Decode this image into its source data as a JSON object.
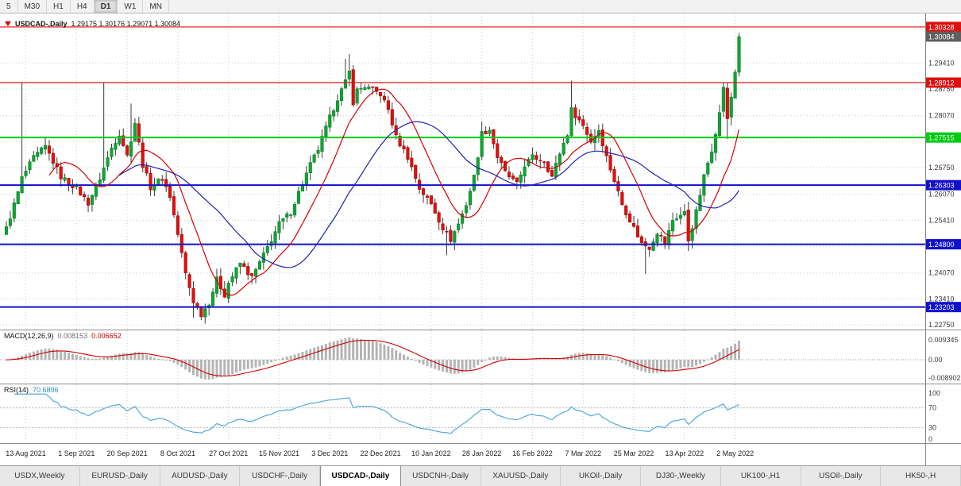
{
  "toolbar": {
    "timeframes": [
      "5",
      "M30",
      "H1",
      "H4",
      "D1",
      "W1",
      "MN"
    ],
    "active": "D1"
  },
  "chart": {
    "title": {
      "symbol": "USDCAD-,Daily",
      "ohlc": "1.29175 1.30176 1.29071 1.30084"
    },
    "y_axis_labels": [
      {
        "text": "1.29410",
        "price": 1.2941
      },
      {
        "text": "1.28750",
        "price": 1.2875
      },
      {
        "text": "1.28070",
        "price": 1.2807
      },
      {
        "text": "1.26750",
        "price": 1.2675
      },
      {
        "text": "1.26070",
        "price": 1.2607
      },
      {
        "text": "1.25410",
        "price": 1.2541
      },
      {
        "text": "1.24070",
        "price": 1.2407
      },
      {
        "text": "1.23410",
        "price": 1.2341
      },
      {
        "text": "1.22750",
        "price": 1.2275
      }
    ],
    "grid_prices": [
      1.2941,
      1.2875,
      1.2807,
      1.2741,
      1.2675,
      1.2607,
      1.2541,
      1.2475,
      1.2407,
      1.2341,
      1.2275
    ],
    "badges": [
      {
        "text": "1.30328",
        "price": 1.30328,
        "bg": "#dd1111"
      },
      {
        "text": "1.30084",
        "price": 1.30084,
        "bg": "#5f5f5f"
      },
      {
        "text": "1.28912",
        "price": 1.28912,
        "bg": "#dd1111"
      },
      {
        "text": "1.27515",
        "price": 1.27515,
        "bg": "#00cc11"
      },
      {
        "text": "1.26303",
        "price": 1.26303,
        "bg": "#1111cc"
      },
      {
        "text": "1.24800",
        "price": 1.248,
        "bg": "#1111cc"
      },
      {
        "text": "1.23203",
        "price": 1.23203,
        "bg": "#1111cc"
      }
    ],
    "h_lines": [
      {
        "price": 1.30328,
        "color": "#dd1111",
        "w": 1.2
      },
      {
        "price": 1.28912,
        "color": "#dd1111",
        "w": 1.2
      },
      {
        "price": 1.27515,
        "color": "#00cc11",
        "w": 2
      },
      {
        "price": 1.26303,
        "color": "#1111cc",
        "w": 2
      },
      {
        "price": 1.248,
        "color": "#1111cc",
        "w": 2
      },
      {
        "price": 1.23203,
        "color": "#1111cc",
        "w": 2
      }
    ],
    "x_axis_labels": [
      "13 Aug 2021",
      "1 Sep 2021",
      "20 Sep 2021",
      "8 Oct 2021",
      "27 Oct 2021",
      "15 Nov 2021",
      "3 Dec 2021",
      "22 Dec 2021",
      "10 Jan 2022",
      "28 Jan 2022",
      "16 Feb 2022",
      "7 Mar 2022",
      "25 Mar 2022",
      "13 Apr 2022",
      "2 May 2022"
    ]
  },
  "chart_data": {
    "type": "candlestick",
    "symbol": "USDCAD",
    "period": "Daily",
    "days": 189,
    "current_bar": {
      "open": 1.29175,
      "high": 1.30176,
      "low": 1.29071,
      "close": 1.30084
    },
    "anchors": [
      [
        0,
        1.252
      ],
      [
        3,
        1.2612
      ],
      [
        4,
        1.2648
      ],
      [
        7,
        1.27
      ],
      [
        10,
        1.2728
      ],
      [
        14,
        1.2652
      ],
      [
        18,
        1.2622
      ],
      [
        21,
        1.2585
      ],
      [
        24,
        1.2648
      ],
      [
        27,
        1.2725
      ],
      [
        29,
        1.2762
      ],
      [
        31,
        1.2705
      ],
      [
        33,
        1.279
      ],
      [
        35,
        1.2682
      ],
      [
        37,
        1.2625
      ],
      [
        40,
        1.2648
      ],
      [
        42,
        1.2602
      ],
      [
        44,
        1.2505
      ],
      [
        46,
        1.2405
      ],
      [
        48,
        1.2335
      ],
      [
        50,
        1.2302
      ],
      [
        52,
        1.2332
      ],
      [
        54,
        1.239
      ],
      [
        56,
        1.2352
      ],
      [
        57,
        1.2382
      ],
      [
        60,
        1.2432
      ],
      [
        63,
        1.2395
      ],
      [
        66,
        1.2452
      ],
      [
        70,
        1.2532
      ],
      [
        73,
        1.2562
      ],
      [
        75,
        1.2612
      ],
      [
        78,
        1.2682
      ],
      [
        80,
        1.2722
      ],
      [
        83,
        1.2802
      ],
      [
        85,
        1.2852
      ],
      [
        87,
        1.2892
      ],
      [
        88,
        1.2918
      ],
      [
        89,
        1.2842
      ],
      [
        90,
        1.2872
      ],
      [
        92,
        1.2882
      ],
      [
        96,
        1.2862
      ],
      [
        98,
        1.2822
      ],
      [
        100,
        1.2752
      ],
      [
        103,
        1.2702
      ],
      [
        106,
        1.2622
      ],
      [
        109,
        1.2582
      ],
      [
        112,
        1.2522
      ],
      [
        114,
        1.2492
      ],
      [
        116,
        1.2532
      ],
      [
        118,
        1.2582
      ],
      [
        120,
        1.2652
      ],
      [
        122,
        1.2762
      ],
      [
        124,
        1.2772
      ],
      [
        126,
        1.2702
      ],
      [
        128,
        1.2662
      ],
      [
        131,
        1.2632
      ],
      [
        133,
        1.2682
      ],
      [
        135,
        1.2702
      ],
      [
        138,
        1.2692
      ],
      [
        140,
        1.2652
      ],
      [
        142,
        1.2712
      ],
      [
        144,
        1.2762
      ],
      [
        145,
        1.2822
      ],
      [
        148,
        1.2782
      ],
      [
        150,
        1.2742
      ],
      [
        152,
        1.2772
      ],
      [
        154,
        1.2702
      ],
      [
        156,
        1.2642
      ],
      [
        158,
        1.2582
      ],
      [
        161,
        1.2522
      ],
      [
        163,
        1.2482
      ],
      [
        165,
        1.2472
      ],
      [
        167,
        1.2512
      ],
      [
        169,
        1.2482
      ],
      [
        171,
        1.2542
      ],
      [
        174,
        1.256
      ],
      [
        175,
        1.249
      ],
      [
        177,
        1.2562
      ],
      [
        179,
        1.2652
      ],
      [
        181,
        1.2722
      ],
      [
        183,
        1.2812
      ],
      [
        184,
        1.2882
      ],
      [
        185,
        1.2795
      ],
      [
        186,
        1.2855
      ],
      [
        187,
        1.2918
      ],
      [
        188,
        1.30084
      ]
    ],
    "spikes": [
      {
        "day": 4,
        "high": 1.2892
      },
      {
        "day": 25,
        "high": 1.289
      },
      {
        "day": 32,
        "high": 1.2838
      },
      {
        "day": 48,
        "low": 1.2293
      },
      {
        "day": 50,
        "low": 1.2287
      },
      {
        "day": 87,
        "high": 1.2952
      },
      {
        "day": 88,
        "high": 1.2964
      },
      {
        "day": 113,
        "low": 1.2452
      },
      {
        "day": 122,
        "high": 1.2792
      },
      {
        "day": 145,
        "high": 1.2896
      },
      {
        "day": 164,
        "low": 1.2405
      },
      {
        "day": 175,
        "low": 1.2463
      },
      {
        "day": 185,
        "low": 1.2748
      }
    ],
    "up_color": "#0fa534",
    "down_color": "#e01010",
    "wick_color": "#3c3c3c",
    "ma_fast": {
      "period": 12,
      "color": "#d40000"
    },
    "ma_slow": {
      "period": 30,
      "color": "#2020b0"
    }
  },
  "macd": {
    "label": "MACD(12,26,9)",
    "value_main": "0.008153",
    "value_signal": "0.006652",
    "scale_top": "0.009345",
    "scale_mid": "0.00",
    "scale_bottom": "-0.008902",
    "hist_color": "#b4b4b4",
    "signal_color": "#d40000"
  },
  "rsi": {
    "label": "RSI(14)",
    "value": "70.6896",
    "color": "#46a2dc",
    "levels": [
      {
        "text": "100",
        "v": 100
      },
      {
        "text": "70",
        "v": 70
      },
      {
        "text": "30",
        "v": 30
      },
      {
        "text": "0",
        "v": 0
      }
    ]
  },
  "tabs": {
    "items": [
      "USDX,Weekly",
      "EURUSD-,Daily",
      "AUDUSD-,Daily",
      "USDCHF-,Daily",
      "USDCAD-,Daily",
      "USDCNH-,Daily",
      "XAUUSD-,Daily",
      "UKOil-,Daily",
      "DJ30-,Weekly",
      "UK100-,H1",
      "USOil-,Daily",
      "HK50-,H"
    ],
    "active": "USDCAD-,Daily"
  }
}
